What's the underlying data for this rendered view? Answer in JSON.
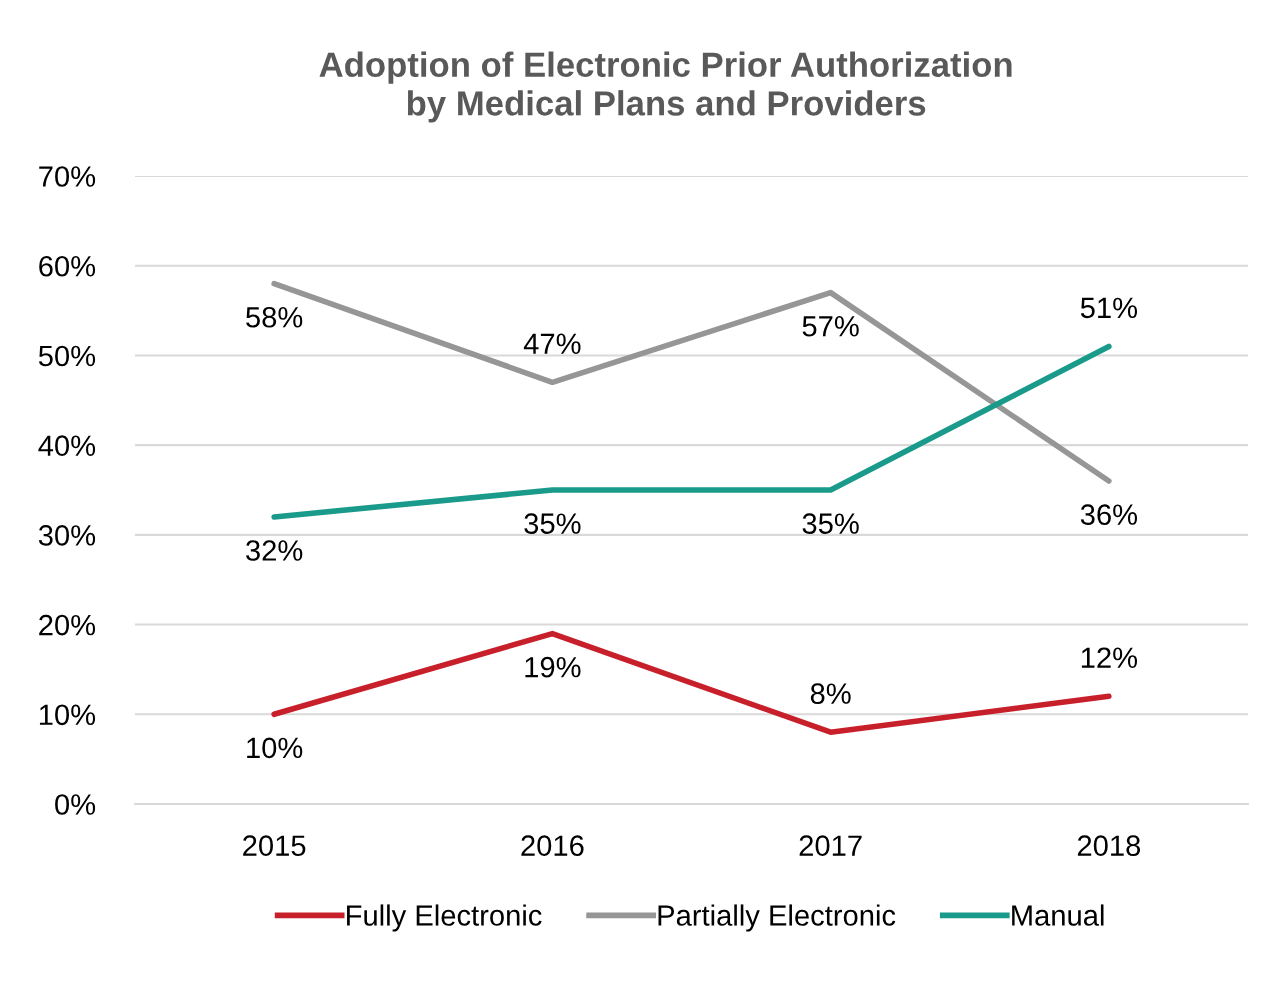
{
  "chart_data": {
    "type": "line",
    "title": "Adoption of Electronic Prior Authorization\nby Medical Plans and Providers",
    "categories": [
      "2015",
      "2016",
      "2017",
      "2018"
    ],
    "series": [
      {
        "name": "Fully Electronic",
        "color": "#c8202a",
        "values": [
          10,
          19,
          8,
          12
        ],
        "value_labels": [
          "10%",
          "19%",
          "8%",
          "12%"
        ]
      },
      {
        "name": "Partially Electronic",
        "color": "#969696",
        "values": [
          58,
          47,
          57,
          36
        ],
        "value_labels": [
          "58%",
          "47%",
          "57%",
          "36%"
        ]
      },
      {
        "name": "Manual",
        "color": "#1a9a8a",
        "values": [
          32,
          35,
          35,
          51
        ],
        "value_labels": [
          "32%",
          "35%",
          "35%",
          "51%"
        ]
      }
    ],
    "ylim": [
      0,
      70
    ],
    "yticks": [
      {
        "value": 0,
        "label": "0%"
      },
      {
        "value": 10,
        "label": "10%"
      },
      {
        "value": 20,
        "label": "20%"
      },
      {
        "value": 30,
        "label": "30%"
      },
      {
        "value": 40,
        "label": "40%"
      },
      {
        "value": 50,
        "label": "50%"
      },
      {
        "value": 60,
        "label": "60%"
      },
      {
        "value": 70,
        "label": "70%"
      }
    ],
    "grid": "y",
    "legend": "bottom",
    "marker": "none",
    "line_style": "solid"
  }
}
